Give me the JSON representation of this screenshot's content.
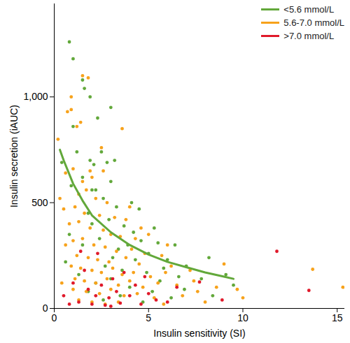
{
  "chart_data": {
    "type": "scatter",
    "x_label": "Insulin sensitivity (SI)",
    "y_label": "Insulin secretion (iAUC)",
    "xlim": [
      0,
      15.4
    ],
    "ylim": [
      0,
      1440
    ],
    "xticks": [
      0,
      5,
      10,
      15
    ],
    "yticks": [
      0,
      500,
      {
        "value": 1000,
        "label": "1,000"
      }
    ],
    "grid": false,
    "legend": "top-right",
    "series": [
      {
        "name": "<5.6 mmol/L",
        "color": "#62a83a",
        "type": "scatter",
        "marker": "circle",
        "x": [
          0.8,
          1.0,
          1.5,
          1.9,
          1.6,
          3.0,
          2.3,
          1.0,
          1.2,
          1.9,
          2.1,
          2.5,
          2.8,
          0.4,
          1.5,
          0.9,
          2.2,
          3.0,
          2.6,
          3.3,
          4.1,
          4.5,
          1.8,
          2.0,
          2.9,
          3.7,
          4.2,
          5.3,
          4.6,
          3.9,
          2.4,
          3.4,
          5.5,
          6.4,
          5.0,
          6.0,
          4.3,
          3.1,
          2.7,
          3.6,
          5.8,
          7.0,
          8.2,
          6.6,
          5.6,
          4.9,
          3.0,
          2.2,
          1.3,
          0.6,
          4.0,
          5.2,
          6.9,
          7.8,
          9.1,
          9.5,
          6.2,
          3.5,
          2.6,
          1.8,
          8.4,
          4.7,
          1.5,
          0.8,
          3.2,
          2.0
        ],
        "values": [
          1260,
          1180,
          1080,
          1000,
          1040,
          950,
          900,
          860,
          740,
          700,
          680,
          740,
          690,
          690,
          620,
          580,
          560,
          600,
          520,
          480,
          500,
          470,
          450,
          400,
          420,
          390,
          360,
          380,
          320,
          300,
          330,
          280,
          310,
          300,
          260,
          230,
          230,
          240,
          200,
          180,
          190,
          200,
          240,
          150,
          130,
          170,
          140,
          120,
          160,
          220,
          100,
          80,
          90,
          140,
          160,
          110,
          50,
          60,
          40,
          80,
          60,
          30,
          300,
          350,
          700,
          560
        ]
      },
      {
        "name": "5.6-7.0 mmol/L",
        "color": "#f7a21b",
        "type": "scatter",
        "marker": "circle",
        "x": [
          0.2,
          0.9,
          1.5,
          1.8,
          0.7,
          0.9,
          1.4,
          1.2,
          3.6,
          0.6,
          1.0,
          1.5,
          2.0,
          2.6,
          1.3,
          1.7,
          2.2,
          2.8,
          0.5,
          1.1,
          1.6,
          2.4,
          3.2,
          4.0,
          0.8,
          1.3,
          1.9,
          2.6,
          3.0,
          3.5,
          4.3,
          5.0,
          0.6,
          1.0,
          1.5,
          2.1,
          2.7,
          3.3,
          4.1,
          4.8,
          5.7,
          1.2,
          1.8,
          2.3,
          2.9,
          3.8,
          4.5,
          6.2,
          0.9,
          1.4,
          2.0,
          2.5,
          3.1,
          3.6,
          4.2,
          5.1,
          5.9,
          7.2,
          1.1,
          1.6,
          2.2,
          2.8,
          3.4,
          4.0,
          4.7,
          5.5,
          6.5,
          0.4,
          1.0,
          1.7,
          2.4,
          3.0,
          3.7,
          4.4,
          5.3,
          6.8,
          7.6,
          8.0,
          2.0,
          1.3,
          2.7,
          3.4,
          5.8,
          9.7,
          10.0,
          13.7,
          15.3,
          9.0,
          0.3,
          2.5,
          1.9,
          3.8,
          4.6,
          6.0,
          7.4,
          8.6
        ],
        "values": [
          800,
          1000,
          1100,
          1090,
          930,
          940,
          880,
          860,
          850,
          640,
          660,
          600,
          620,
          650,
          540,
          560,
          520,
          500,
          470,
          480,
          450,
          440,
          430,
          480,
          400,
          410,
          380,
          370,
          350,
          340,
          330,
          350,
          300,
          320,
          330,
          300,
          290,
          270,
          280,
          260,
          250,
          250,
          240,
          230,
          220,
          240,
          210,
          200,
          200,
          190,
          180,
          170,
          190,
          160,
          170,
          150,
          170,
          180,
          140,
          130,
          120,
          140,
          110,
          130,
          100,
          120,
          110,
          120,
          90,
          80,
          70,
          90,
          60,
          70,
          50,
          60,
          80,
          30,
          30,
          40,
          20,
          30,
          20,
          90,
          50,
          185,
          100,
          210,
          520,
          760,
          650,
          420,
          380,
          300,
          130,
          100
        ]
      },
      {
        "name": ">7.0 mmol/L",
        "color": "#e0192a",
        "type": "scatter",
        "marker": "circle",
        "x": [
          0.5,
          1.0,
          1.3,
          1.6,
          1.8,
          2.0,
          2.2,
          2.5,
          2.7,
          2.9,
          3.1,
          3.3,
          3.5,
          3.7,
          4.0,
          4.3,
          4.6,
          5.0,
          5.4,
          6.0,
          6.5,
          7.7,
          8.9,
          11.8,
          13.5,
          1.4,
          2.3,
          3.0,
          4.8,
          0.8
        ],
        "values": [
          60,
          120,
          30,
          180,
          90,
          20,
          60,
          110,
          15,
          50,
          140,
          80,
          25,
          170,
          60,
          110,
          20,
          70,
          40,
          30,
          100,
          125,
          40,
          270,
          85,
          270,
          260,
          10,
          150,
          20
        ]
      },
      {
        "color": "#62a83a",
        "type": "line",
        "line_style": "solid",
        "x": [
          0.3,
          0.5,
          1,
          1.5,
          2,
          3,
          4,
          5,
          6,
          7,
          8,
          9,
          9.5
        ],
        "values": [
          750,
          700,
          590,
          510,
          440,
          360,
          300,
          255,
          220,
          195,
          170,
          150,
          140
        ]
      }
    ]
  }
}
